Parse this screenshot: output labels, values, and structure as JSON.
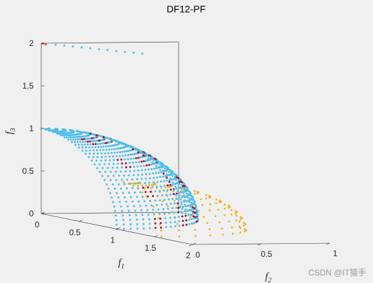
{
  "chart_data": {
    "type": "scatter3d",
    "title": "DF12-PF",
    "xlabel": {
      "base": "f",
      "sub": "1"
    },
    "ylabel": {
      "base": "f",
      "sub": "2"
    },
    "zlabel": {
      "base": "f",
      "sub": "3"
    },
    "xlim": [
      0,
      2
    ],
    "ylim": [
      0,
      1
    ],
    "zlim": [
      0,
      2
    ],
    "xticks": [
      {
        "v": 0,
        "t": "0"
      },
      {
        "v": 0.5,
        "t": "0.5"
      },
      {
        "v": 1,
        "t": "1"
      },
      {
        "v": 1.5,
        "t": "1.5"
      },
      {
        "v": 2,
        "t": "2"
      }
    ],
    "yticks": [
      {
        "v": 0,
        "t": "0"
      },
      {
        "v": 0.5,
        "t": "0.5"
      },
      {
        "v": 1,
        "t": "1"
      }
    ],
    "zticks": [
      {
        "v": 0,
        "t": "0"
      },
      {
        "v": 0.5,
        "t": "0.5"
      },
      {
        "v": 1,
        "t": "1"
      },
      {
        "v": 1.5,
        "t": "1.5"
      },
      {
        "v": 2,
        "t": "2"
      }
    ],
    "grid": false,
    "box": true,
    "colors": {
      "front": "#4dbeee",
      "solution": "#a2142f",
      "orange": "#edb120",
      "red": "#d95319"
    },
    "series": [
      {
        "role": "true-front",
        "shape": "spherical quarter-shell f1^2+f2^2+f3^2=1",
        "color": "#4dbeee"
      },
      {
        "role": "obtained-solutions",
        "shape": "patches on the shell",
        "color": "#a2142f"
      },
      {
        "role": "shifted-front",
        "shape": "shell translated along f1",
        "color": "#edb120"
      },
      {
        "role": "degenerate-front",
        "shape": "line at f3=2",
        "color": "#4dbeee"
      },
      {
        "role": "extreme-points",
        "shape": "points at f3=2",
        "color": "#d95319"
      }
    ]
  },
  "watermark": "CSDN @IT猿手"
}
